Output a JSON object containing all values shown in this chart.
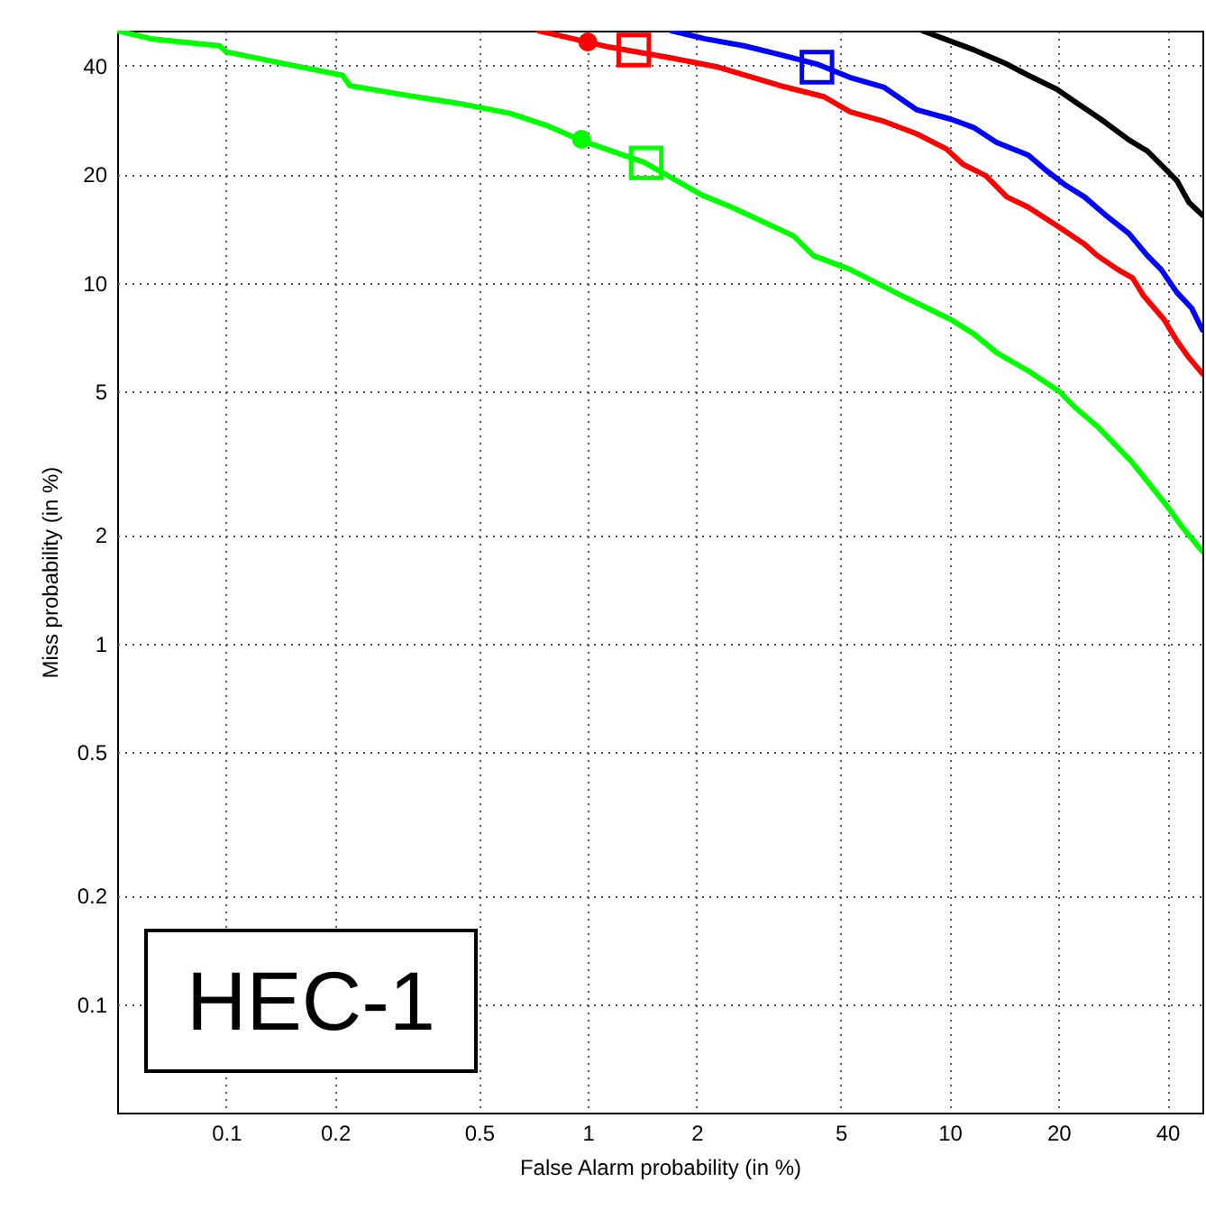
{
  "chart_data": {
    "type": "line",
    "xlabel": "False Alarm probability (in %)",
    "ylabel": "Miss probability (in %)",
    "annotations": [
      "HEC-1"
    ],
    "xlim": [
      0.05,
      50
    ],
    "ylim": [
      0.05,
      50
    ],
    "xticks": [
      0.1,
      0.2,
      0.5,
      1,
      2,
      5,
      10,
      20,
      40
    ],
    "yticks": [
      0.1,
      0.2,
      0.5,
      1,
      2,
      5,
      10,
      20,
      40
    ],
    "grid": true,
    "log": "xy",
    "line_style": "solid",
    "series": [
      {
        "color": "#00ff00",
        "x": [
          0.05,
          0.062,
          0.096,
          0.1,
          0.14,
          0.21,
          0.22,
          0.31,
          0.45,
          0.61,
          0.77,
          0.95,
          1.43,
          2.07,
          2.5,
          3.7,
          4.2,
          5.3,
          7.4,
          10.1,
          11.7,
          13.5,
          16.5,
          20.1,
          22.3,
          25.6,
          31.8,
          40,
          44,
          50
        ],
        "values": [
          50,
          47.5,
          45.4,
          43.7,
          40.8,
          37.6,
          35.2,
          33.2,
          31.3,
          29.5,
          27.3,
          24.9,
          21.6,
          17.5,
          16.2,
          13.5,
          11.9,
          10.9,
          9.2,
          7.9,
          7.2,
          6.4,
          5.7,
          5.0,
          4.5,
          4.0,
          3.2,
          2.4,
          2.1,
          1.8
        ]
      },
      {
        "color": "#ff0000",
        "x": [
          0.73,
          0.87,
          1.15,
          1.7,
          2.3,
          3.4,
          4.5,
          5.3,
          6.6,
          8.1,
          9.8,
          10.9,
          12.6,
          14.4,
          16.5,
          19.8,
          23.6,
          25.6,
          29.1,
          32.1,
          34.4,
          39.2,
          42.5,
          45.9,
          50
        ],
        "values": [
          50,
          48,
          45,
          42,
          39.6,
          35.2,
          32.8,
          29.8,
          28,
          25.9,
          23.5,
          21.3,
          19.8,
          17.3,
          16.2,
          14.4,
          12.8,
          11.9,
          10.9,
          10.3,
          9.2,
          7.9,
          6.9,
          6.2,
          5.6
        ]
      },
      {
        "color": "#0000ff",
        "x": [
          1.7,
          2.1,
          2.7,
          3.4,
          4.3,
          5.3,
          6.6,
          8.1,
          10.1,
          11.7,
          13.5,
          16.5,
          18.6,
          21,
          23.6,
          27,
          31.3,
          35.2,
          38.4,
          42.5,
          46.7,
          50
        ],
        "values": [
          50,
          47.5,
          45.4,
          42.9,
          40.4,
          37.1,
          34.8,
          30.2,
          28.4,
          26.9,
          24.5,
          22.6,
          20.4,
          18.6,
          17.3,
          15.4,
          13.7,
          11.9,
          10.9,
          9.4,
          8.5,
          7.4
        ]
      },
      {
        "color": "#000000",
        "x": [
          8.4,
          10.1,
          11.7,
          14.4,
          16.5,
          19.8,
          22.3,
          26.2,
          31.3,
          35.2,
          40,
          42.5,
          45.9,
          50
        ],
        "values": [
          50,
          46.7,
          44.2,
          40.4,
          37.6,
          34.4,
          31.7,
          28.4,
          24.9,
          23.2,
          20.4,
          19.2,
          16.7,
          15.4
        ]
      },
      {
        "type": "scatter",
        "marker": "circle",
        "x": [
          1.0,
          0.96
        ],
        "values": [
          46.5,
          25
        ],
        "colors": [
          "#ff0000",
          "#00ff00"
        ]
      },
      {
        "type": "scatter",
        "marker": "square",
        "x": [
          1.34,
          1.45,
          4.3
        ],
        "values": [
          44.2,
          21.5,
          39.6
        ],
        "colors": [
          "#ff0000",
          "#00ff00",
          "#0000ff"
        ]
      }
    ]
  }
}
